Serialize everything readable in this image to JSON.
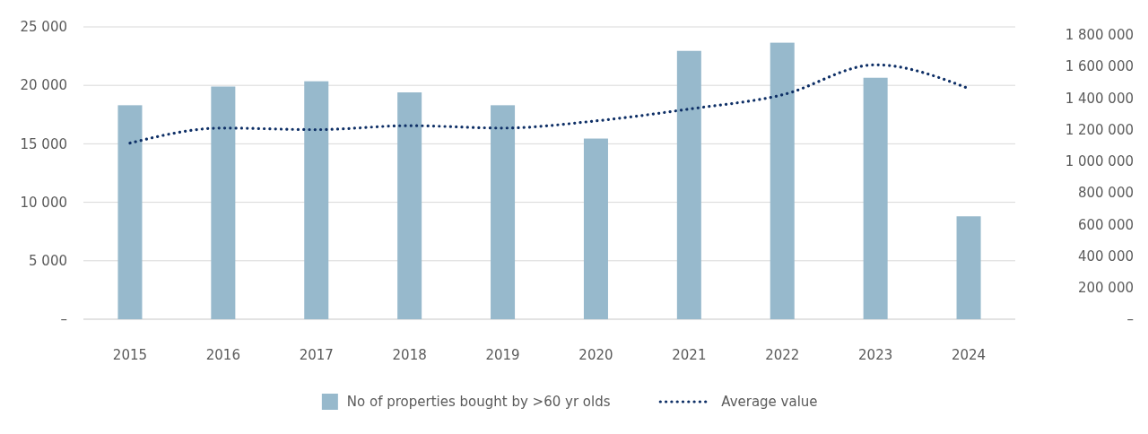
{
  "chart_data": {
    "type": "bar",
    "categories": [
      "2015",
      "2016",
      "2017",
      "2018",
      "2019",
      "2020",
      "2021",
      "2022",
      "2023",
      "2024"
    ],
    "series": [
      {
        "name": "No of properties bought by >60 yr olds",
        "color": "#97b9cc",
        "values": [
          18300,
          19900,
          20350,
          19400,
          18300,
          15450,
          22950,
          23650,
          20650,
          8800
        ]
      },
      {
        "name": "Average value",
        "type": "line",
        "axis": "y2",
        "color": "#0e2f66",
        "line_style": "dotted",
        "values": [
          1115000,
          1210000,
          1200000,
          1225000,
          1210000,
          1255000,
          1330000,
          1420000,
          1610000,
          1460000
        ]
      }
    ],
    "ylim": [
      0,
      25000
    ],
    "yticks": [
      {
        "value": 0,
        "label": "–"
      },
      {
        "value": 5000,
        "label": "5 000"
      },
      {
        "value": 10000,
        "label": "10 000"
      },
      {
        "value": 15000,
        "label": "15 000"
      },
      {
        "value": 20000,
        "label": "20 000"
      },
      {
        "value": 25000,
        "label": "25 000"
      }
    ],
    "y2lim": [
      0,
      1850000
    ],
    "y2ticks": [
      {
        "value": 0,
        "label": "–"
      },
      {
        "value": 200000,
        "label": "200 000"
      },
      {
        "value": 400000,
        "label": "400 000"
      },
      {
        "value": 600000,
        "label": "600 000"
      },
      {
        "value": 800000,
        "label": "800 000"
      },
      {
        "value": 1000000,
        "label": "1 000 000"
      },
      {
        "value": 1200000,
        "label": "1 200 000"
      },
      {
        "value": 1400000,
        "label": "1 400 000"
      },
      {
        "value": 1600000,
        "label": "1 600 000"
      },
      {
        "value": 1800000,
        "label": "1 800 000"
      }
    ],
    "grid": "y",
    "legend": "bottom"
  }
}
